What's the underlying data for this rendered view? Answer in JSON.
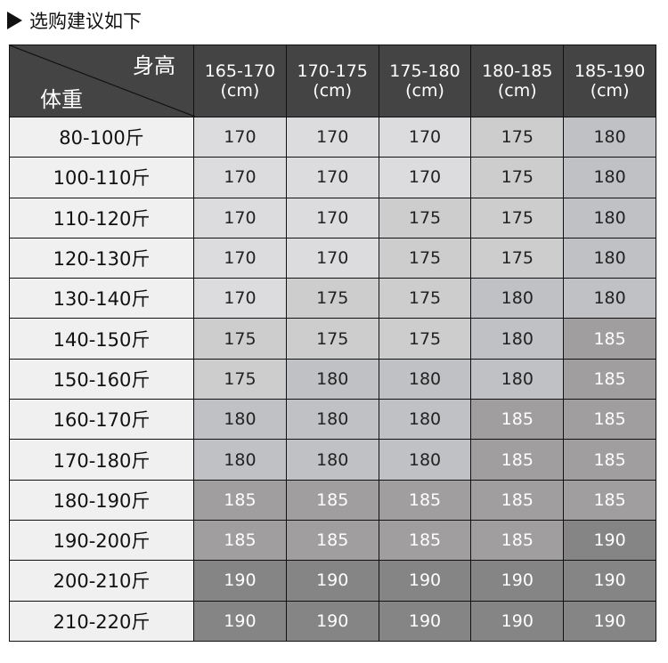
{
  "title": "选购建议如下",
  "header": {
    "height_label": "身高",
    "weight_label": "体重",
    "columns": [
      "165-170\n(cm)",
      "170-175\n(cm)",
      "175-180\n(cm)",
      "180-185\n(cm)",
      "185-190\n(cm)"
    ]
  },
  "colors": {
    "170": "#dcdcdf",
    "175": "#cdcdcd",
    "180": "#c0c1c5",
    "185": "#a09e9f",
    "190": "#858585",
    "header": "#444444",
    "weight_col": "#f0f0f0"
  },
  "rows": [
    {
      "weight": "80-100斤",
      "sizes": [
        "170",
        "170",
        "170",
        "175",
        "180"
      ]
    },
    {
      "weight": "100-110斤",
      "sizes": [
        "170",
        "170",
        "170",
        "175",
        "180"
      ]
    },
    {
      "weight": "110-120斤",
      "sizes": [
        "170",
        "170",
        "175",
        "175",
        "180"
      ]
    },
    {
      "weight": "120-130斤",
      "sizes": [
        "170",
        "170",
        "175",
        "175",
        "180"
      ]
    },
    {
      "weight": "130-140斤",
      "sizes": [
        "170",
        "175",
        "175",
        "180",
        "180"
      ]
    },
    {
      "weight": "140-150斤",
      "sizes": [
        "175",
        "175",
        "175",
        "180",
        "185"
      ]
    },
    {
      "weight": "150-160斤",
      "sizes": [
        "175",
        "180",
        "180",
        "180",
        "185"
      ]
    },
    {
      "weight": "160-170斤",
      "sizes": [
        "180",
        "180",
        "180",
        "185",
        "185"
      ]
    },
    {
      "weight": "170-180斤",
      "sizes": [
        "180",
        "180",
        "180",
        "185",
        "185"
      ]
    },
    {
      "weight": "180-190斤",
      "sizes": [
        "185",
        "185",
        "185",
        "185",
        "185"
      ]
    },
    {
      "weight": "190-200斤",
      "sizes": [
        "185",
        "185",
        "185",
        "185",
        "190"
      ]
    },
    {
      "weight": "200-210斤",
      "sizes": [
        "190",
        "190",
        "190",
        "190",
        "190"
      ]
    },
    {
      "weight": "210-220斤",
      "sizes": [
        "190",
        "190",
        "190",
        "190",
        "190"
      ]
    }
  ]
}
